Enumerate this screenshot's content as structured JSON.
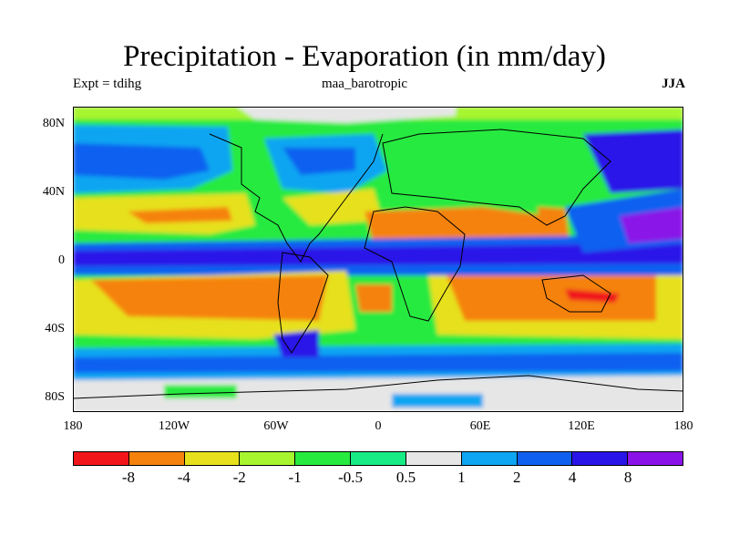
{
  "title": "Precipitation - Evaporation (in mm/day)",
  "experiment": "Expt = tdihg",
  "run_name": "maa_barotropic",
  "season": "JJA",
  "lat_labels": [
    "80N",
    "40N",
    "0",
    "40S",
    "80S"
  ],
  "lon_labels": [
    "180",
    "120W",
    "60W",
    "0",
    "60E",
    "120E",
    "180"
  ],
  "legend": {
    "colors": [
      "#f0161a",
      "#f5820d",
      "#e6e11c",
      "#a6f52e",
      "#27ea3f",
      "#17ec85",
      "#e6e6e6",
      "#0ea5f2",
      "#1060f0",
      "#2a15e8",
      "#8a12e8"
    ],
    "labels": [
      "-8",
      "-4",
      "-2",
      "-1",
      "-0.5",
      "0.5",
      "1",
      "2",
      "4",
      "8"
    ]
  },
  "colors": {
    "ocean_default": "#27ea3f",
    "coastline": "#000000"
  }
}
